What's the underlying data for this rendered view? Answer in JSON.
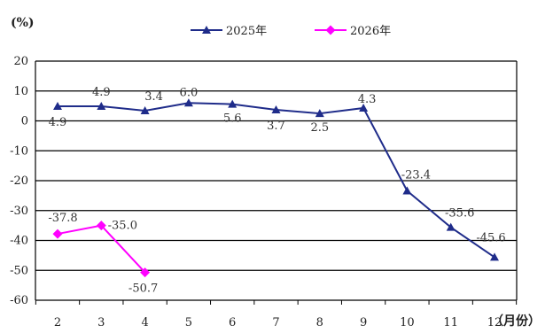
{
  "chart_data": {
    "type": "line",
    "y_unit_label": "(%)",
    "x_unit_label": "（月份）",
    "x": [
      2,
      3,
      4,
      5,
      6,
      7,
      8,
      9,
      10,
      11,
      12
    ],
    "ylim": [
      -60,
      20
    ],
    "yticks": [
      20,
      10,
      0,
      -10,
      -20,
      -30,
      -40,
      -50,
      -60
    ],
    "grid": {
      "horizontal": true,
      "vertical": false
    },
    "legend_position": "top-center",
    "series": [
      {
        "name": "2025年",
        "color": "#1f2c8a",
        "marker": "triangle",
        "x": [
          2,
          3,
          4,
          5,
          6,
          7,
          8,
          9,
          10,
          11,
          12
        ],
        "values": [
          4.9,
          4.9,
          3.4,
          6.0,
          5.6,
          3.7,
          2.5,
          4.3,
          -23.4,
          -35.6,
          -45.6
        ],
        "labels": [
          "4.9",
          "4.9",
          "3.4",
          "6.0",
          "5.6",
          "3.7",
          "2.5",
          "4.3",
          "-23.4",
          "-35.6",
          "-45.6"
        ]
      },
      {
        "name": "2026年",
        "color": "#ff00ff",
        "marker": "diamond",
        "x": [
          2,
          3,
          4
        ],
        "values": [
          -37.8,
          -35.0,
          -50.7
        ],
        "labels": [
          "-37.8",
          "-35.0",
          "-50.7"
        ]
      }
    ]
  }
}
